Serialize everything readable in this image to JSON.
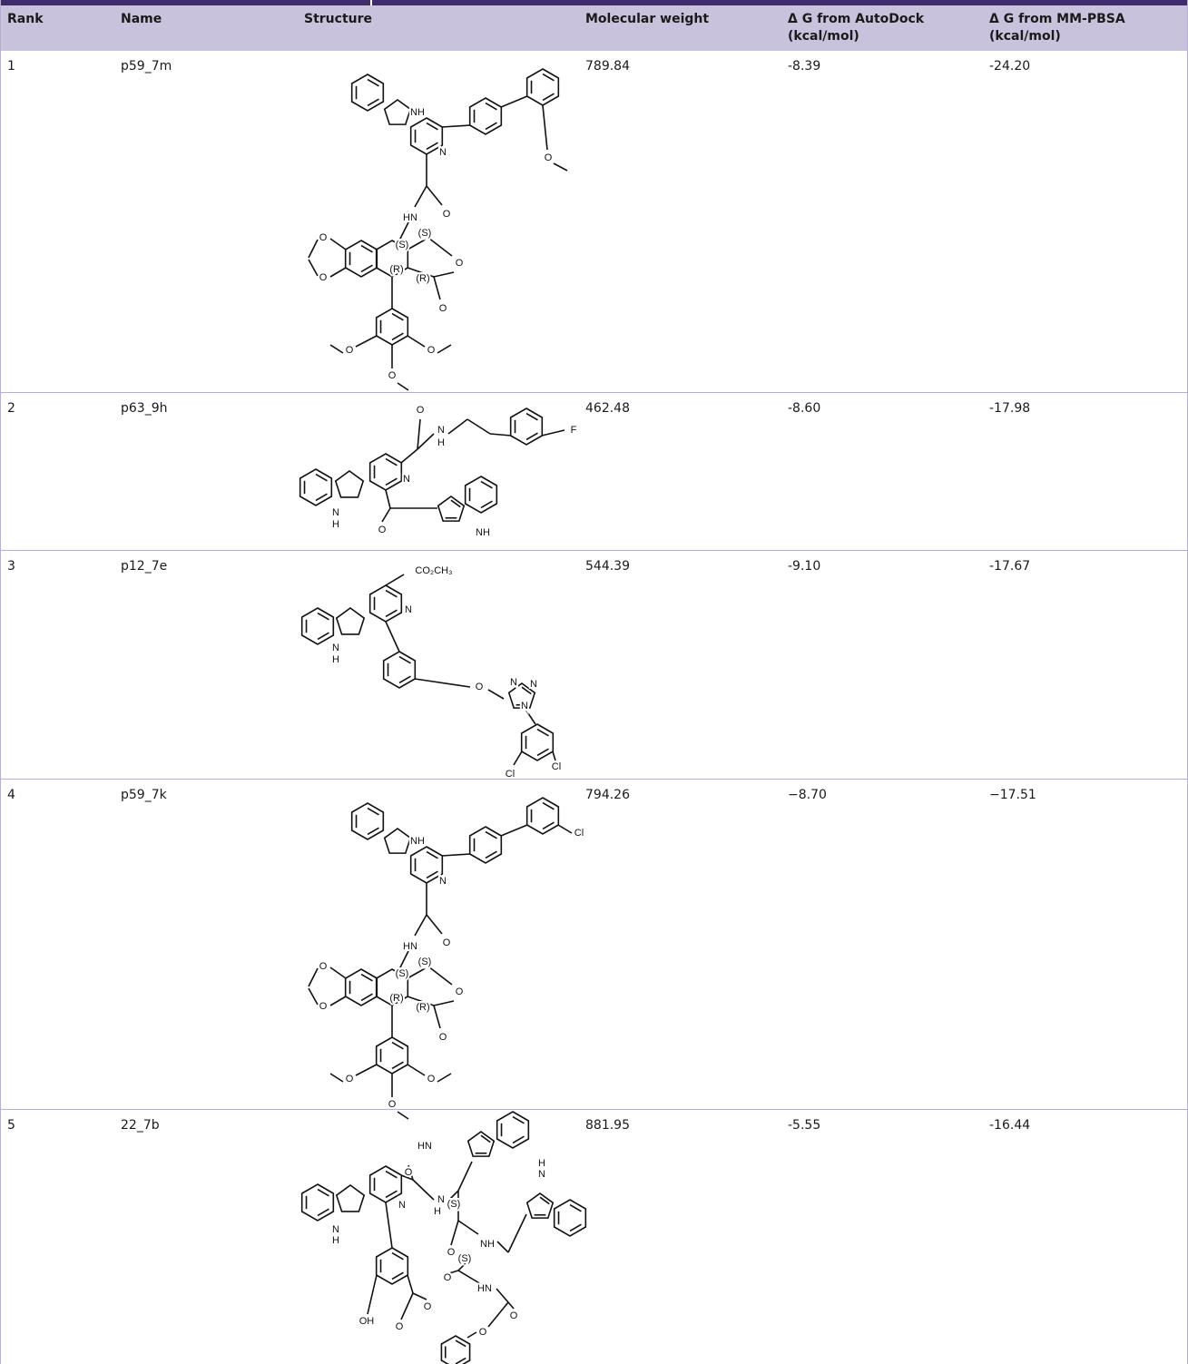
{
  "table": {
    "headers": [
      "Rank",
      "Name",
      "Structure",
      "Molecular weight",
      [
        "Δ G from AutoDock",
        "(kcal/mol)"
      ],
      [
        "Δ G from MM-PBSA",
        "(kcal/mol)"
      ]
    ],
    "rows": [
      [
        "1",
        "p59_7m",
        "789.84",
        "-8.39",
        "-24.20"
      ],
      [
        "2",
        "p63_9h",
        "462.48",
        "-8.60",
        "-17.98"
      ],
      [
        "3",
        "p12_7e",
        "544.39",
        "-9.10",
        "-17.67"
      ],
      [
        "4",
        "p59_7k",
        "794.26",
        "−8.70",
        "−17.51"
      ],
      [
        "5",
        "22_7b",
        "881.95",
        "-5.55",
        "-16.44"
      ]
    ],
    "structures": [
      [
        "NH",
        "N",
        "O",
        "HN",
        "O",
        "(S)",
        "(S)",
        "O",
        "O",
        "(R)",
        "(R)",
        "O",
        "O",
        "O",
        "O",
        "O"
      ],
      [
        "O",
        "N",
        "H",
        "F",
        "N",
        "N",
        "H",
        "O",
        "NH"
      ],
      [
        "CO₂CH₃",
        "N",
        "N",
        "H",
        "O",
        "N",
        "N",
        "N",
        "Cl",
        "Cl"
      ],
      [
        "NH",
        "N",
        "Cl",
        "HN",
        "O",
        "(S)",
        "(S)",
        "O",
        "O",
        "(R)",
        "(R)",
        "O",
        "O",
        "O",
        "O",
        "O"
      ],
      [
        "HN",
        "O",
        "N",
        "N",
        "H",
        "N",
        "H",
        "(S)",
        "O",
        "NH",
        "H",
        "N",
        "(S)",
        "O",
        "HN",
        "OH",
        "O",
        "O",
        "O",
        "O"
      ]
    ]
  }
}
